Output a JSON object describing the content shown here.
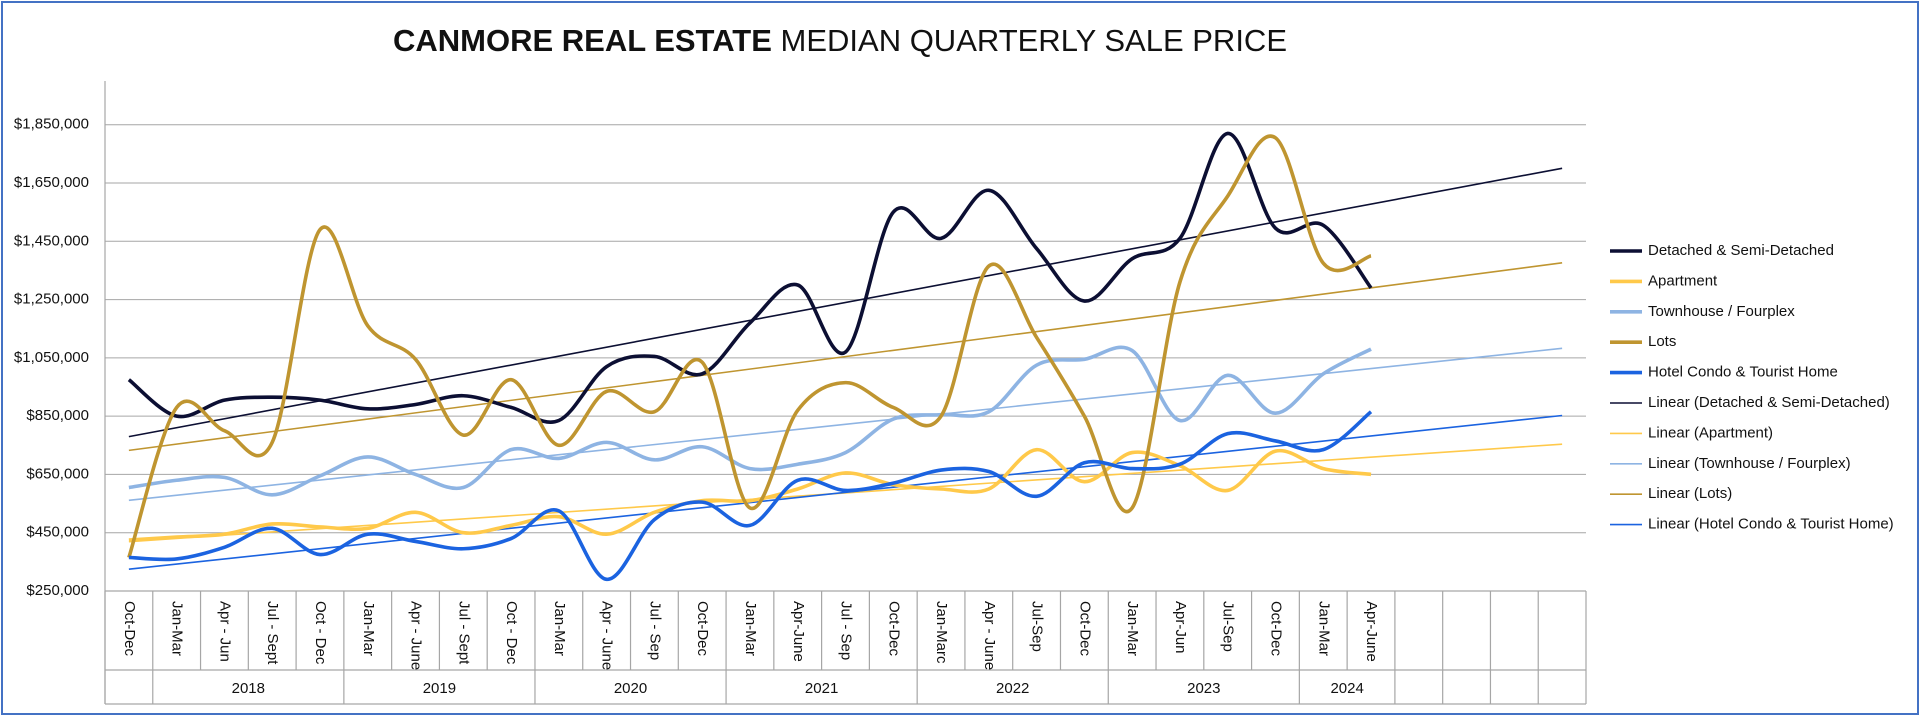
{
  "chart_data": {
    "type": "line",
    "title_bold": "CANMORE REAL ESTATE",
    "title": "MEDIAN QUARTERLY SALE PRICE",
    "categories": [
      "Oct-Dec",
      "Jan-Mar",
      "Apr - Jun",
      "Jul - Sept",
      "Oct - Dec",
      "Jan-Mar",
      "Apr - June",
      "Jul - Sept",
      "Oct - Dec",
      "Jan-Mar",
      "Apr - June",
      "Jul - Sep",
      "Oct-Dec",
      "Jan-Mar",
      "Apr-June",
      "Jul - Sep",
      "Oct-Dec",
      "Jan-Marc",
      "Apr - June",
      "Jul-Sep",
      "Oct-Dec",
      "Jan-Mar",
      "Apr-Jun",
      "Jul-Sep",
      "Oct-Dec",
      "Jan-Mar",
      "Apr-June",
      null,
      null,
      null,
      null
    ],
    "category_groups": [
      {
        "label": null,
        "size": 1
      },
      {
        "label": "2018",
        "size": 4
      },
      {
        "label": "2019",
        "size": 4
      },
      {
        "label": "2020",
        "size": 4
      },
      {
        "label": "2021",
        "size": 4
      },
      {
        "label": "2022",
        "size": 4
      },
      {
        "label": "2023",
        "size": 4
      },
      {
        "label": "2024",
        "size": 2
      },
      {
        "label": null,
        "size": 1
      },
      {
        "label": null,
        "size": 1
      },
      {
        "label": null,
        "size": 1
      },
      {
        "label": null,
        "size": 1
      }
    ],
    "smooth": true,
    "trendline": true,
    "series": [
      {
        "name": "Detached & Semi-Detached",
        "trend_name": "Linear (Detached & Semi-Detached)",
        "color": "#0c0f33",
        "values": [
          975000,
          850000,
          905000,
          915000,
          905000,
          875000,
          890000,
          920000,
          880000,
          835000,
          1020000,
          1055000,
          995000,
          1170000,
          1300000,
          1070000,
          1550000,
          1460000,
          1625000,
          1425000,
          1245000,
          1390000,
          1460000,
          1820000,
          1495000,
          1505000,
          1290000,
          null,
          null,
          null,
          null
        ]
      },
      {
        "name": "Apartment",
        "trend_name": "Linear (Apartment)",
        "color": "#ffc94a",
        "values": [
          425000,
          435000,
          445000,
          480000,
          470000,
          465000,
          520000,
          450000,
          475000,
          505000,
          445000,
          520000,
          560000,
          560000,
          600000,
          655000,
          615000,
          600000,
          600000,
          735000,
          625000,
          725000,
          680000,
          595000,
          730000,
          670000,
          650000,
          null,
          null,
          null,
          null
        ]
      },
      {
        "name": "Townhouse / Fourplex",
        "trend_name": "Linear (Townhouse / Fourplex)",
        "color": "#8eb4e3",
        "values": [
          605000,
          630000,
          640000,
          580000,
          645000,
          710000,
          650000,
          605000,
          735000,
          705000,
          760000,
          700000,
          745000,
          670000,
          685000,
          725000,
          840000,
          855000,
          865000,
          1025000,
          1045000,
          1075000,
          835000,
          990000,
          860000,
          995000,
          1080000,
          null,
          null,
          null,
          null
        ]
      },
      {
        "name": "Lots",
        "trend_name": "Linear (Lots)",
        "color": "#bf9530",
        "values": [
          365000,
          880000,
          800000,
          760000,
          1490000,
          1160000,
          1045000,
          785000,
          975000,
          750000,
          935000,
          865000,
          1035000,
          535000,
          870000,
          965000,
          880000,
          850000,
          1365000,
          1120000,
          850000,
          535000,
          1310000,
          1605000,
          1805000,
          1375000,
          1400000,
          null,
          null,
          null,
          null
        ]
      },
      {
        "name": "Hotel Condo & Tourist Home",
        "trend_name": "Linear (Hotel Condo & Tourist Home)",
        "color": "#1b63e0",
        "values": [
          365000,
          360000,
          400000,
          465000,
          375000,
          445000,
          420000,
          395000,
          430000,
          525000,
          290000,
          495000,
          555000,
          475000,
          630000,
          595000,
          620000,
          665000,
          660000,
          575000,
          690000,
          670000,
          685000,
          790000,
          765000,
          735000,
          865000,
          null,
          null,
          null,
          null
        ]
      }
    ],
    "ylim": [
      250000,
      2000000
    ],
    "yticks": [
      {
        "value": 250000,
        "label": "$250,000"
      },
      {
        "value": 450000,
        "label": "$450,000"
      },
      {
        "value": 650000,
        "label": "$650,000"
      },
      {
        "value": 850000,
        "label": "$850,000"
      },
      {
        "value": 1050000,
        "label": "$1,050,000"
      },
      {
        "value": 1250000,
        "label": "$1,250,000"
      },
      {
        "value": 1450000,
        "label": "$1,450,000"
      },
      {
        "value": 1650000,
        "label": "$1,650,000"
      },
      {
        "value": 1850000,
        "label": "$1,850,000"
      }
    ],
    "grid": true,
    "legend": "right"
  }
}
